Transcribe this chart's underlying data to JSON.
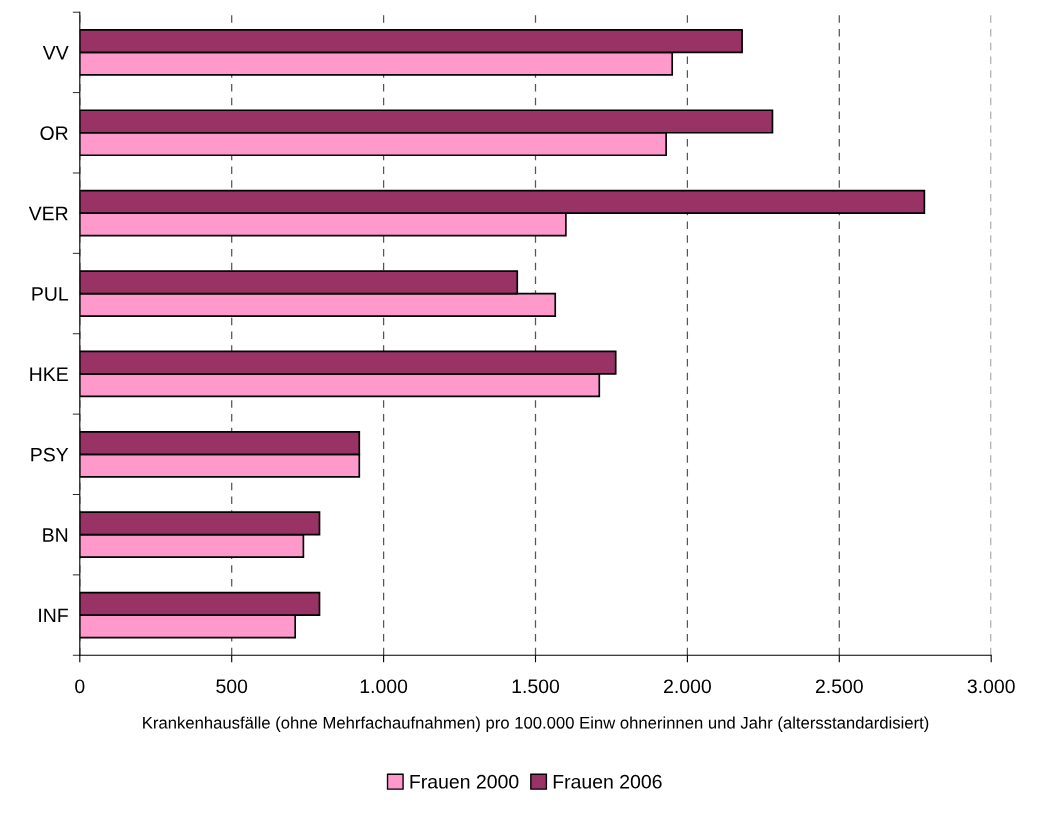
{
  "chart_data": {
    "type": "bar",
    "orientation": "horizontal",
    "categories": [
      "VV",
      "OR",
      "VER",
      "PUL",
      "HKE",
      "PSY",
      "BN",
      "INF"
    ],
    "series": [
      {
        "name": "Frauen 2000",
        "color": "#ff99cc",
        "values": [
          1950,
          1930,
          1600,
          1565,
          1710,
          920,
          736,
          709
        ]
      },
      {
        "name": "Frauen 2006",
        "color": "#993366",
        "values": [
          2180,
          2280,
          2780,
          1440,
          1764,
          920,
          789,
          789
        ]
      }
    ],
    "xlabel": "Krankenhausfälle (ohne Mehrfachaufnahmen) pro 100.000 Einw ohnerinnen und Jahr (altersstandardisiert)",
    "xlim": [
      0,
      3000
    ],
    "xticks": [
      0,
      {
        "value": 500,
        "label": "500"
      },
      {
        "value": 1000,
        "label": "1.000"
      },
      {
        "value": 1500,
        "label": "1.500"
      },
      {
        "value": 2000,
        "label": "2.000"
      },
      {
        "value": 2500,
        "label": "2.500"
      },
      {
        "value": 3000,
        "label": "3.000"
      }
    ],
    "grid": "x",
    "legend": "bottom"
  }
}
